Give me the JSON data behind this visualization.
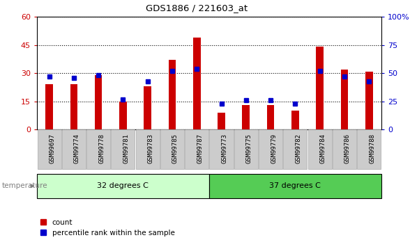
{
  "title": "GDS1886 / 221603_at",
  "samples": [
    "GSM99697",
    "GSM99774",
    "GSM99778",
    "GSM99781",
    "GSM99783",
    "GSM99785",
    "GSM99787",
    "GSM99773",
    "GSM99775",
    "GSM99779",
    "GSM99782",
    "GSM99784",
    "GSM99786",
    "GSM99788"
  ],
  "count_values": [
    24,
    24,
    29,
    15,
    23,
    37,
    49,
    9,
    13,
    13,
    10,
    44,
    32,
    31
  ],
  "percentile_values": [
    47,
    46,
    48,
    27,
    43,
    52,
    54,
    23,
    26,
    26,
    23,
    52,
    47,
    43
  ],
  "group1_label": "32 degrees C",
  "group2_label": "37 degrees C",
  "group1_count": 7,
  "group2_count": 7,
  "bar_color_red": "#cc0000",
  "bar_color_blue": "#0000cc",
  "ylim_left": [
    0,
    60
  ],
  "ylim_right": [
    0,
    100
  ],
  "yticks_left": [
    0,
    15,
    30,
    45,
    60
  ],
  "ytick_labels_left": [
    "0",
    "15",
    "30",
    "45",
    "60"
  ],
  "yticks_right": [
    0,
    25,
    50,
    75,
    100
  ],
  "ytick_labels_right": [
    "0",
    "25",
    "50",
    "75",
    "100%"
  ],
  "group1_bg": "#ccffcc",
  "group2_bg": "#55cc55",
  "tick_label_bg": "#cccccc",
  "bar_width": 0.55
}
